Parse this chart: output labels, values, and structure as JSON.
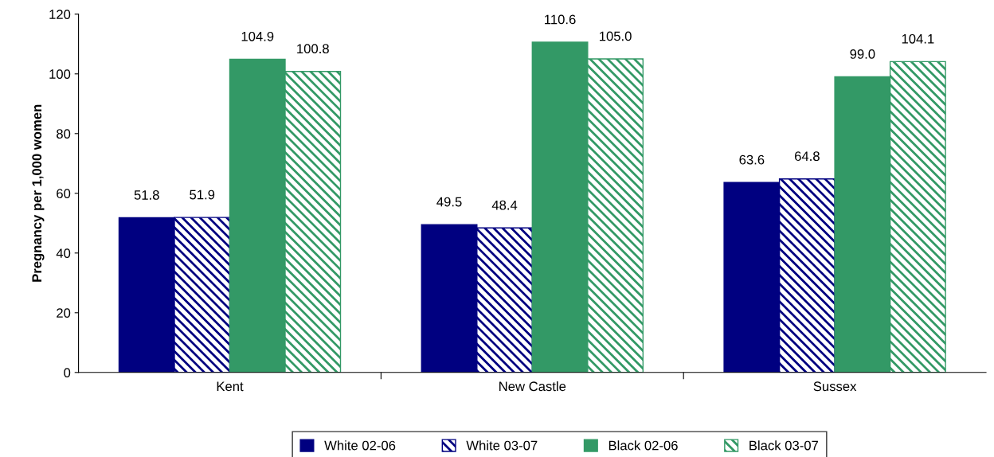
{
  "chart_data": {
    "type": "bar",
    "ylabel": "Pregnancy per 1,000 women",
    "categories": [
      "Kent",
      "New Castle",
      "Sussex"
    ],
    "series": [
      {
        "name": "White 02-06",
        "color": "#000080",
        "values": [
          51.8,
          49.5,
          63.6
        ],
        "value_labels": [
          "51.8",
          "49.5",
          "63.6"
        ]
      },
      {
        "name": "White 03-07",
        "color": "#000080",
        "line_style": "dashed",
        "values": [
          51.9,
          48.4,
          64.8
        ],
        "value_labels": [
          "51.9",
          "48.4",
          "64.8"
        ]
      },
      {
        "name": "Black 02-06",
        "color": "#339966",
        "values": [
          104.9,
          110.6,
          99.0
        ],
        "value_labels": [
          "104.9",
          "110.6",
          "99.0"
        ]
      },
      {
        "name": "Black 03-07",
        "color": "#339966",
        "line_style": "dashed",
        "values": [
          100.8,
          105.0,
          104.1
        ],
        "value_labels": [
          "100.8",
          "105.0",
          "104.1"
        ]
      }
    ],
    "ylim": [
      0,
      120
    ],
    "yticks": [
      0,
      20,
      40,
      60,
      80,
      100,
      120
    ],
    "grid": false,
    "legend": "bottom"
  }
}
